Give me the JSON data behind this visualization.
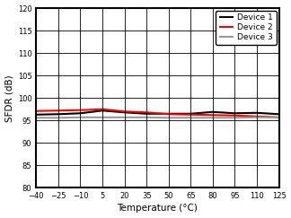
{
  "title": "",
  "xlabel": "Temperature (°C)",
  "ylabel": "SFDR (dB)",
  "xlim": [
    -40,
    125
  ],
  "ylim": [
    80,
    120
  ],
  "xticks": [
    -40,
    -25,
    -10,
    5,
    20,
    35,
    50,
    65,
    80,
    95,
    110,
    125
  ],
  "yticks": [
    80,
    85,
    90,
    95,
    100,
    105,
    110,
    115,
    120
  ],
  "device1": {
    "label": "Device 1",
    "color": "#000000",
    "linewidth": 1.5,
    "x": [
      -40,
      -25,
      -10,
      5,
      20,
      35,
      50,
      65,
      80,
      95,
      110,
      125
    ],
    "y": [
      96.3,
      96.4,
      96.6,
      97.2,
      96.8,
      96.5,
      96.5,
      96.5,
      96.9,
      96.6,
      96.7,
      96.4
    ]
  },
  "device2": {
    "label": "Device 2",
    "color": "#ff0000",
    "linewidth": 1.5,
    "x": [
      -40,
      -25,
      -10,
      5,
      20,
      35,
      50,
      65,
      80,
      95,
      110,
      125
    ],
    "y": [
      97.1,
      97.2,
      97.3,
      97.5,
      97.0,
      96.8,
      96.4,
      96.3,
      96.2,
      96.1,
      95.9,
      95.7
    ]
  },
  "device3": {
    "label": "Device 3",
    "color": "#999999",
    "linewidth": 1.5,
    "x": [
      -40,
      -25,
      -10,
      5,
      20,
      35,
      50,
      65,
      80,
      95,
      110,
      125
    ],
    "y": [
      95.6,
      95.6,
      95.7,
      95.7,
      95.7,
      95.7,
      95.6,
      95.6,
      95.6,
      95.6,
      95.7,
      95.7
    ]
  },
  "legend_loc": "upper right",
  "grid_color": "#000000",
  "spine_color": "#000000",
  "bg_color": "#ffffff",
  "tick_fontsize": 6.0,
  "label_fontsize": 7.5,
  "legend_fontsize": 6.5,
  "spine_linewidth": 1.5,
  "grid_linewidth": 0.6,
  "grid_alpha": 1.0
}
